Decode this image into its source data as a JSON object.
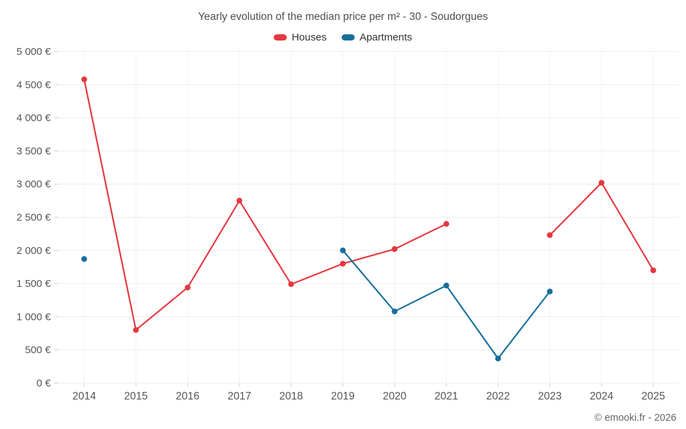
{
  "chart_data": {
    "type": "line",
    "title": "Yearly evolution of the median price per m² - 30 - Soudorgues",
    "categories": [
      "2014",
      "2015",
      "2016",
      "2017",
      "2018",
      "2019",
      "2020",
      "2021",
      "2022",
      "2023",
      "2024",
      "2025"
    ],
    "series": [
      {
        "name": "Houses",
        "color": "#e5383f",
        "values": [
          4580,
          800,
          1440,
          2750,
          1490,
          1800,
          2020,
          2400,
          null,
          2230,
          3020,
          1700
        ]
      },
      {
        "name": "Apartments",
        "color": "#176f9b",
        "values": [
          1870,
          null,
          null,
          null,
          null,
          2000,
          1080,
          1470,
          370,
          1380,
          null,
          null
        ]
      }
    ],
    "ylim": [
      0,
      5000
    ],
    "ytick_step": 500,
    "ytick_suffix": " €",
    "grid": true,
    "legend_position": "top"
  },
  "footer": {
    "copyright": "© emooki.fr - 2026"
  }
}
